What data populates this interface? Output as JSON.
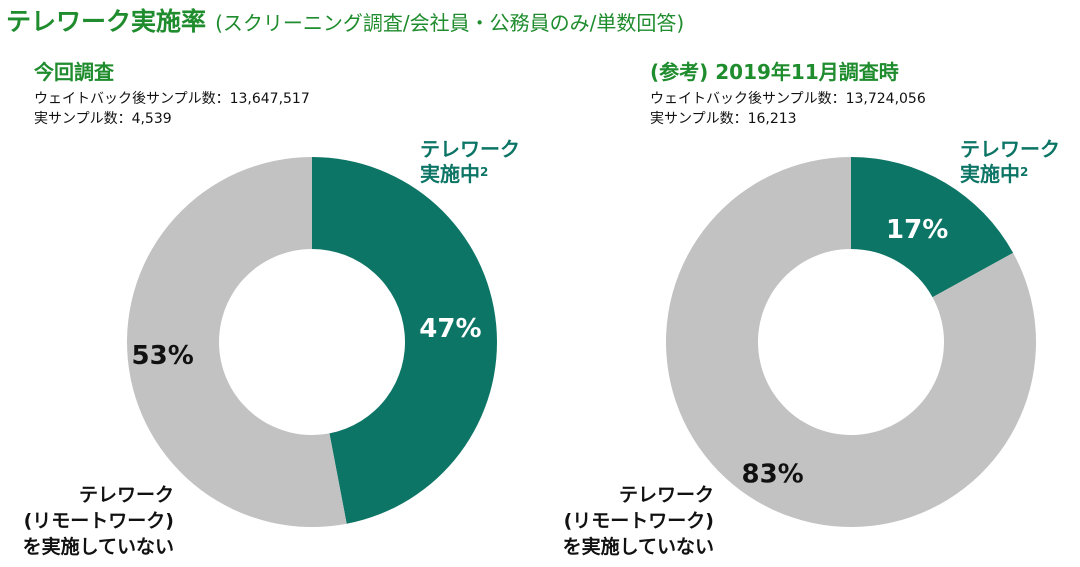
{
  "title": {
    "main": "テレワーク実施率",
    "sub": "(スクリーニング調査/会社員・公務員のみ/単数回答)"
  },
  "colors": {
    "accent_green": "#1f8c2e",
    "teal": "#0d7566",
    "grey": "#c2c2c2"
  },
  "panels": [
    {
      "title": "今回調査",
      "meta": [
        "ウェイトバック後サンプル数：13,647,517",
        "実サンプル数：4,539"
      ],
      "label_yes": {
        "line1": "テレワーク",
        "line2": "実施中",
        "sup": "2"
      },
      "label_no": [
        "テレワーク",
        "(リモートワーク)",
        "を実施していない"
      ]
    },
    {
      "title": "(参考) 2019年11月調査時",
      "meta": [
        "ウェイトバック後サンプル数：13,724,056",
        "実サンプル数：16,213"
      ],
      "label_yes": {
        "line1": "テレワーク",
        "line2": "実施中",
        "sup": "2"
      },
      "label_no": [
        "テレワーク",
        "(リモートワーク)",
        "を実施していない"
      ]
    }
  ],
  "chart_data": [
    {
      "type": "pie",
      "donut": true,
      "title": "今回調査",
      "slices": [
        {
          "label": "テレワーク実施中",
          "value": 47,
          "display": "47%",
          "color": "#0d7566"
        },
        {
          "label": "テレワーク(リモートワーク)を実施していない",
          "value": 53,
          "display": "53%",
          "color": "#c2c2c2"
        }
      ]
    },
    {
      "type": "pie",
      "donut": true,
      "title": "(参考) 2019年11月調査時",
      "slices": [
        {
          "label": "テレワーク実施中",
          "value": 17,
          "display": "17%",
          "color": "#0d7566"
        },
        {
          "label": "テレワーク(リモートワーク)を実施していない",
          "value": 83,
          "display": "83%",
          "color": "#c2c2c2"
        }
      ]
    }
  ]
}
